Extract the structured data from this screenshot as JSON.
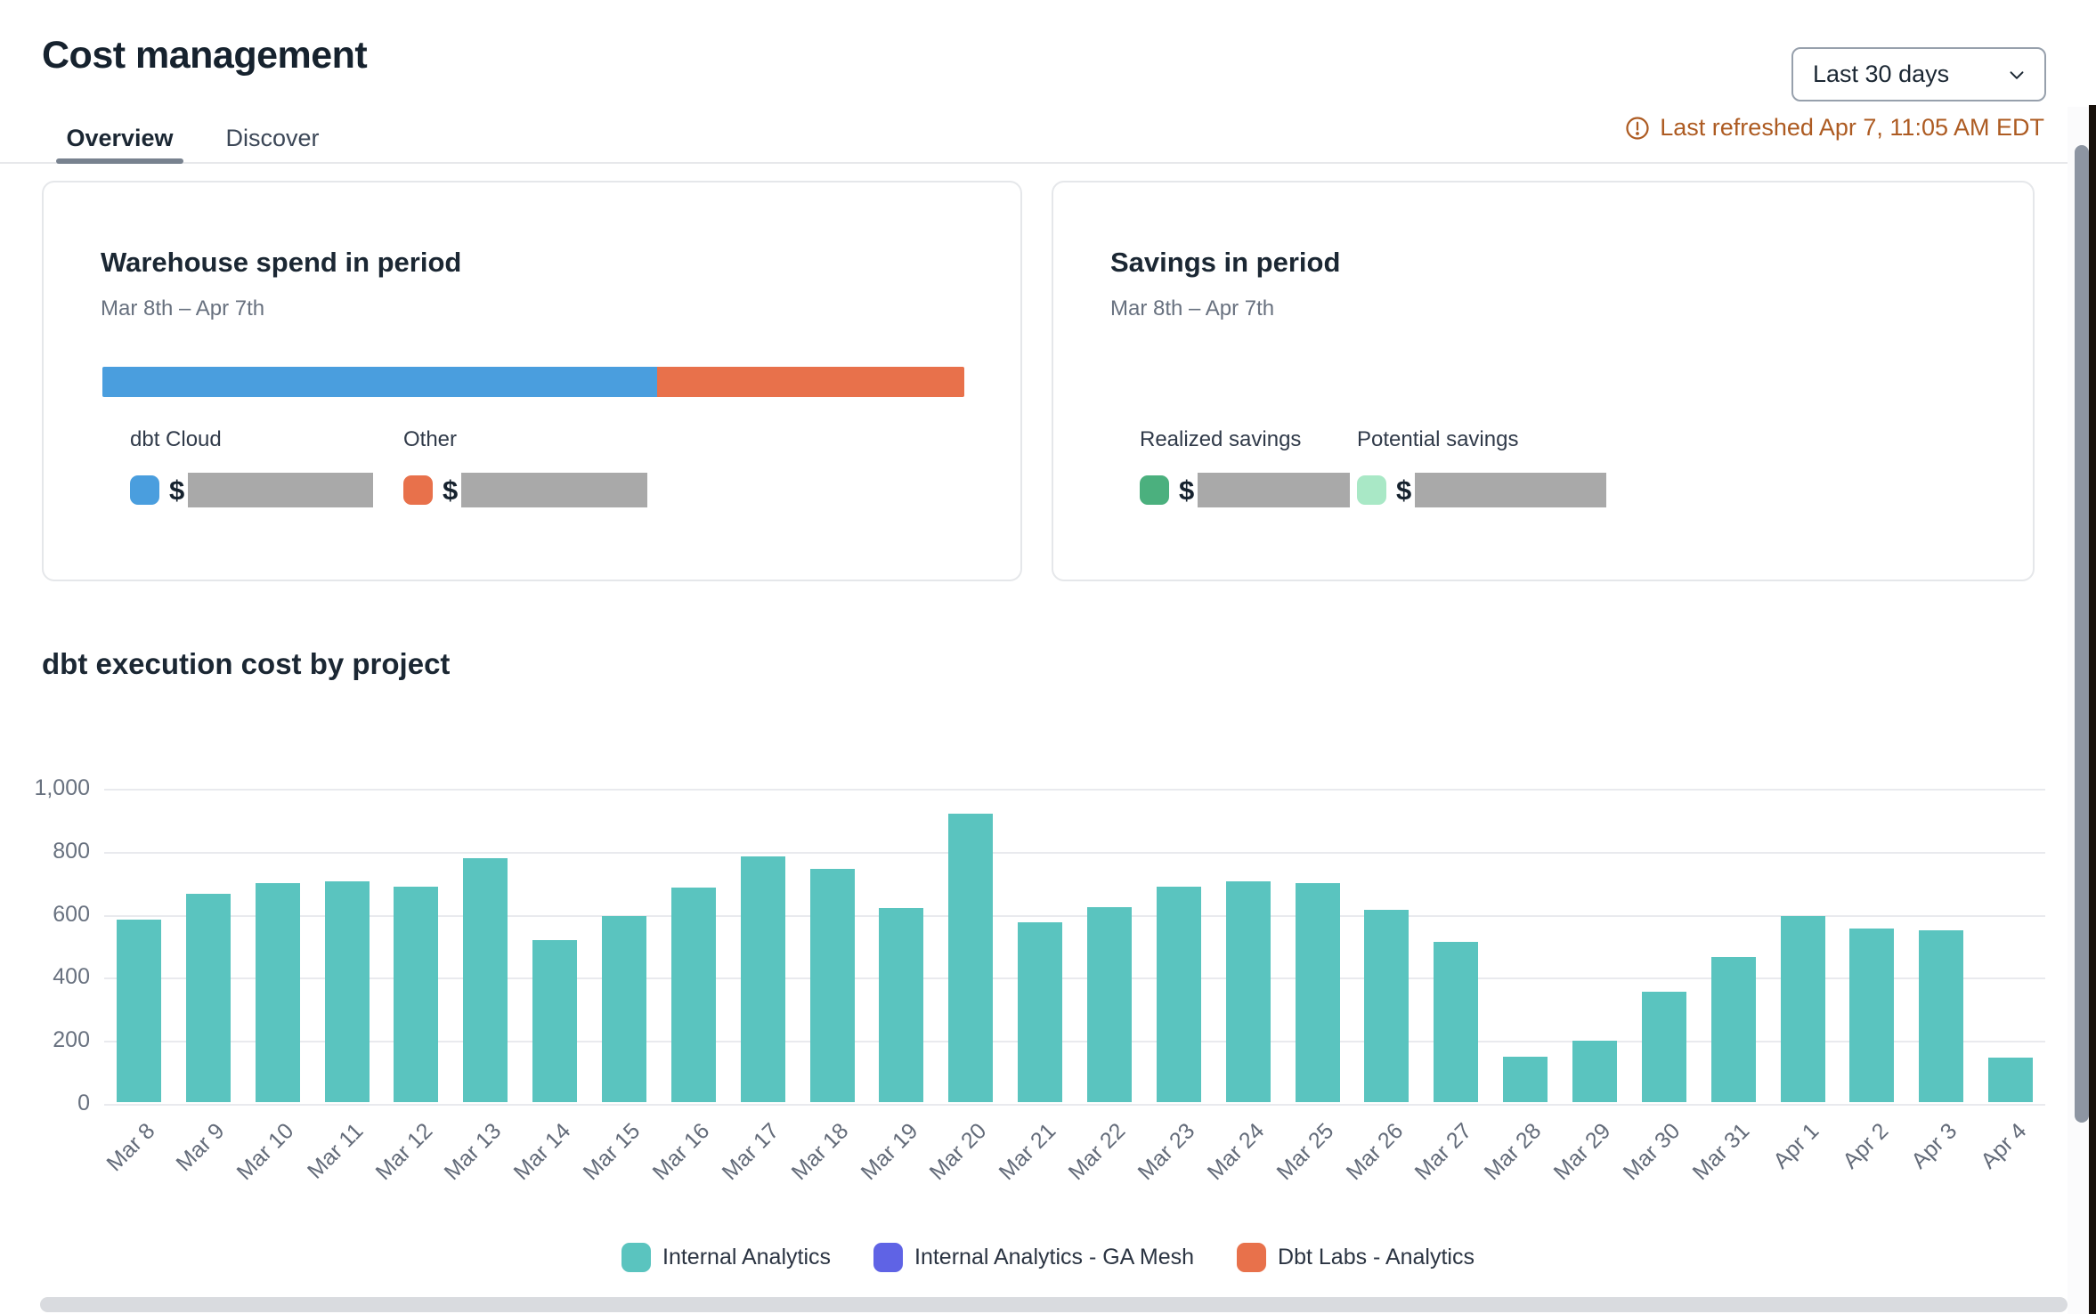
{
  "header": {
    "title": "Cost management",
    "tabs": [
      {
        "label": "Overview",
        "active": true
      },
      {
        "label": "Discover",
        "active": false
      }
    ],
    "date_range_selector": {
      "value": "Last 30 days"
    },
    "last_refreshed": "Last refreshed Apr 7, 11:05 AM EDT",
    "last_refreshed_color": "#ad5b22"
  },
  "cards": {
    "warehouse_spend": {
      "title": "Warehouse spend in period",
      "period": "Mar 8th – Apr 7th",
      "stacked_bar_segments": [
        {
          "name": "dbt Cloud",
          "color": "#4a9ede",
          "fraction": 0.644
        },
        {
          "name": "Other",
          "color": "#e8714b",
          "fraction": 0.356
        }
      ],
      "legend": [
        {
          "label": "dbt Cloud",
          "color": "#4a9ede",
          "value_prefix": "$",
          "value_redacted": true
        },
        {
          "label": "Other",
          "color": "#e8714b",
          "value_prefix": "$",
          "value_redacted": true
        }
      ]
    },
    "savings": {
      "title": "Savings in period",
      "period": "Mar 8th – Apr 7th",
      "legend": [
        {
          "label": "Realized savings",
          "color": "#4bb07e",
          "value_prefix": "$",
          "value_redacted": true
        },
        {
          "label": "Potential savings",
          "color": "#a9e8c6",
          "value_prefix": "$",
          "value_redacted": true
        }
      ]
    }
  },
  "chart_section": {
    "title": "dbt execution cost by project"
  },
  "chart_data": {
    "type": "bar",
    "title": "dbt execution cost by project",
    "categories": [
      "Mar 8",
      "Mar 9",
      "Mar 10",
      "Mar 11",
      "Mar 12",
      "Mar 13",
      "Mar 14",
      "Mar 15",
      "Mar 16",
      "Mar 17",
      "Mar 18",
      "Mar 19",
      "Mar 20",
      "Mar 21",
      "Mar 22",
      "Mar 23",
      "Mar 24",
      "Mar 25",
      "Mar 26",
      "Mar 27",
      "Mar 28",
      "Mar 29",
      "Mar 30",
      "Mar 31",
      "Apr 1",
      "Apr 2",
      "Apr 3",
      "Apr 4"
    ],
    "series": [
      {
        "name": "Internal Analytics",
        "color": "#5ac4bf",
        "values": [
          580,
          660,
          695,
          700,
          685,
          775,
          515,
          590,
          680,
          780,
          740,
          615,
          915,
          570,
          620,
          685,
          700,
          695,
          610,
          510,
          145,
          195,
          350,
          460,
          590,
          550,
          545,
          140
        ]
      }
    ],
    "legend_entries": [
      {
        "name": "Internal Analytics",
        "color": "#5ac4bf"
      },
      {
        "name": "Internal Analytics - GA Mesh",
        "color": "#5f63e5"
      },
      {
        "name": "Dbt Labs - Analytics",
        "color": "#e8714b"
      }
    ],
    "xlabel": "",
    "ylabel": "",
    "ylim": [
      0,
      1000
    ],
    "yticks": [
      {
        "value": 0,
        "label": "0"
      },
      {
        "value": 200,
        "label": "200"
      },
      {
        "value": 400,
        "label": "400"
      },
      {
        "value": 600,
        "label": "600"
      },
      {
        "value": 800,
        "label": "800"
      },
      {
        "value": 1000,
        "label": "1,000"
      }
    ],
    "grid": true,
    "legend_position": "bottom"
  }
}
